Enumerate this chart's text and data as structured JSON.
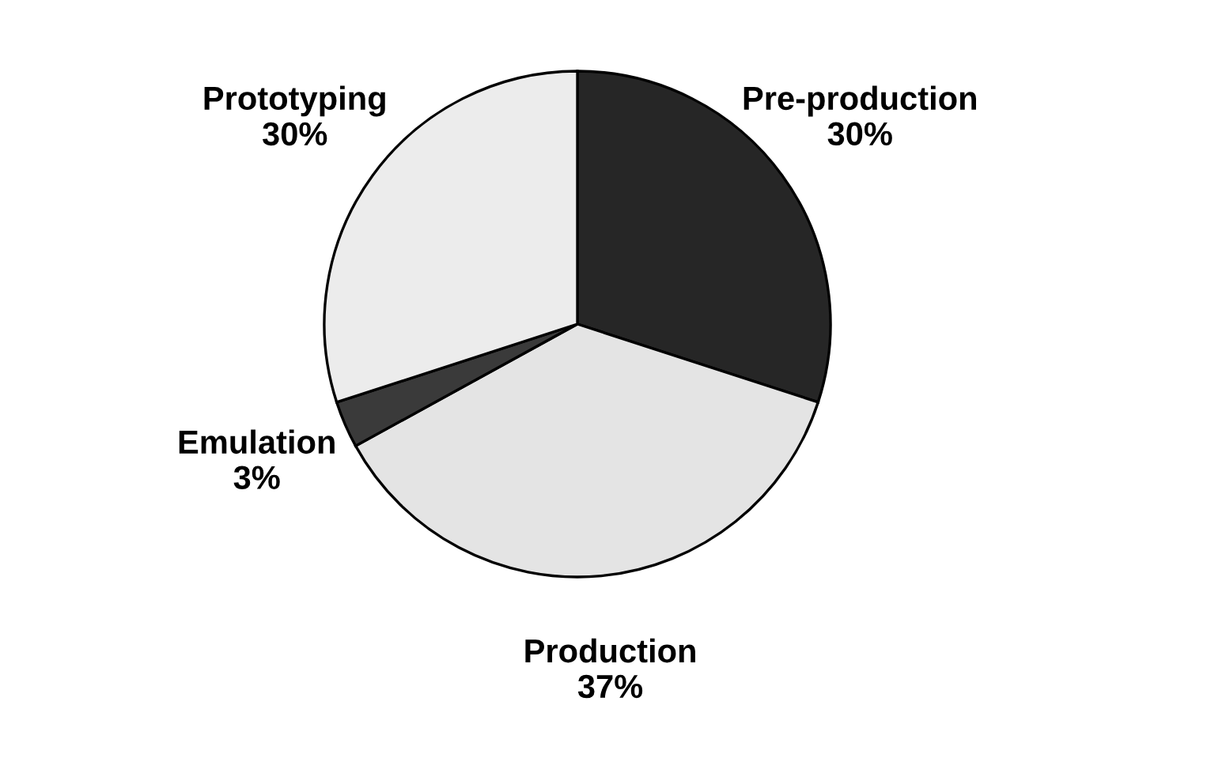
{
  "chart_data": {
    "type": "pie",
    "categories": [
      "Pre-production",
      "Production",
      "Emulation",
      "Prototyping"
    ],
    "values": [
      30,
      37,
      3,
      30
    ],
    "colors": [
      "#262626",
      "#e4e4e4",
      "#3a3a3a",
      "#ececec"
    ],
    "value_labels": [
      "30%",
      "37%",
      "3%",
      "30%"
    ]
  }
}
